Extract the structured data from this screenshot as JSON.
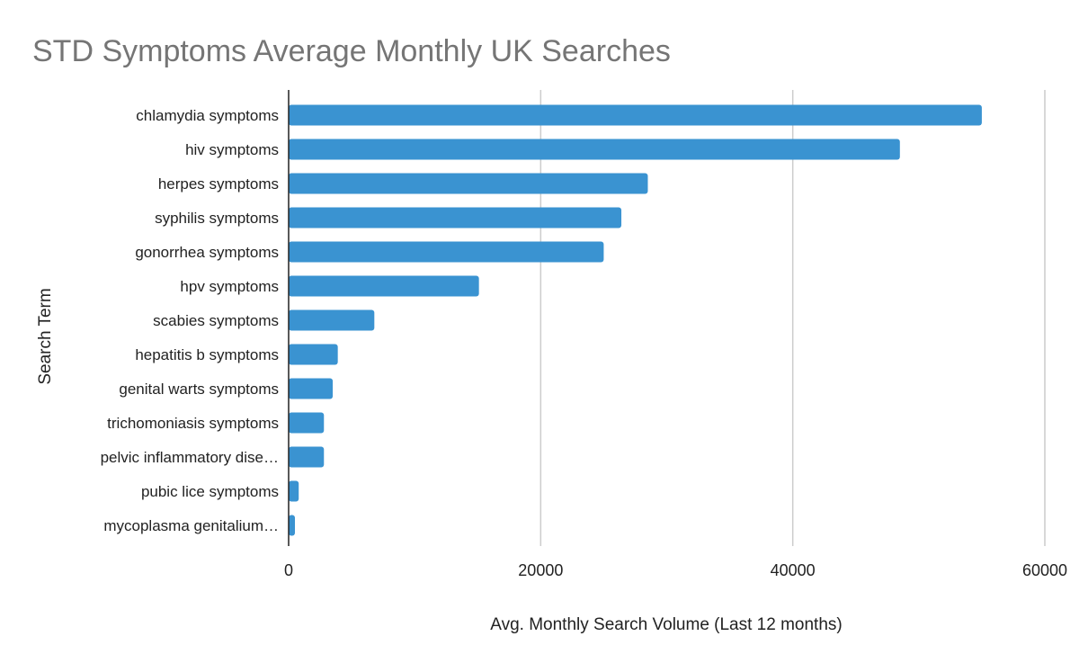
{
  "chart_data": {
    "type": "bar",
    "orientation": "horizontal",
    "title": "STD Symptoms Average Monthly UK Searches",
    "xlabel": "Avg. Monthly Search Volume (Last 12 months)",
    "ylabel": "Search Term",
    "categories": [
      "chlamydia symptoms",
      "hiv symptoms",
      "herpes symptoms",
      "syphilis symptoms",
      "gonorrhea symptoms",
      "hpv symptoms",
      "scabies symptoms",
      "hepatitis b symptoms",
      "genital warts symptoms",
      "trichomoniasis symptoms",
      "pelvic inflammatory dise…",
      "pubic lice symptoms",
      "mycoplasma genitalium…"
    ],
    "values": [
      55000,
      48500,
      28500,
      26400,
      25000,
      15100,
      6800,
      3900,
      3500,
      2800,
      2800,
      800,
      500
    ],
    "xlim": [
      0,
      60000
    ],
    "xticks": [
      "0",
      "20000",
      "40000",
      "60000"
    ],
    "grid": true,
    "legend": "none",
    "colors": {
      "bar": "#3a93d1",
      "grid": "#cccccc",
      "axis": "#222222",
      "title": "#757575"
    }
  }
}
